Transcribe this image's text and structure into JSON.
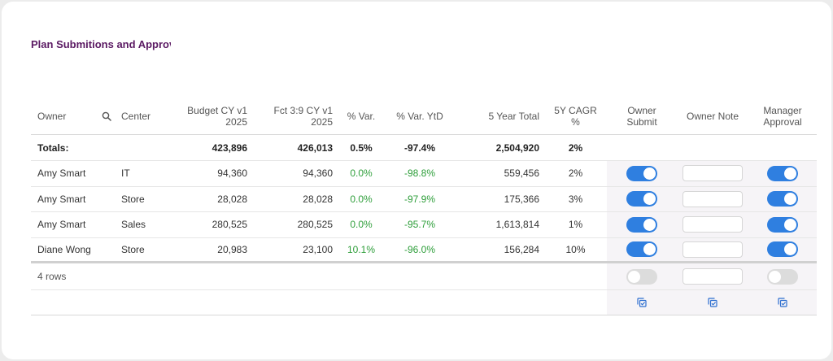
{
  "page_title": "Plan Submitions and Approva",
  "columns": {
    "owner": "Owner",
    "center": "Center",
    "budget_l1": "Budget CY v1",
    "budget_l2": "2025",
    "fct_l1": "Fct 3:9 CY v1",
    "fct_l2": "2025",
    "var": "% Var.",
    "var_ytd": "% Var. YtD",
    "five_year_total": "5 Year Total",
    "cagr": "5Y CAGR %",
    "owner_submit_l1": "Owner",
    "owner_submit_l2": "Submit",
    "owner_note": "Owner Note",
    "manager_approval_l1": "Manager",
    "manager_approval_l2": "Approval"
  },
  "totals": {
    "label": "Totals:",
    "budget": "423,896",
    "fct": "426,013",
    "var": "0.5%",
    "var_ytd": "-97.4%",
    "five_year_total": "2,504,920",
    "cagr": "2%"
  },
  "rows": [
    {
      "owner": "Amy Smart",
      "center": "IT",
      "budget": "94,360",
      "fct": "94,360",
      "var": "0.0%",
      "var_ytd": "-98.8%",
      "five_year_total": "559,456",
      "cagr": "2%",
      "owner_submit": true,
      "manager_approval": true
    },
    {
      "owner": "Amy Smart",
      "center": "Store",
      "budget": "28,028",
      "fct": "28,028",
      "var": "0.0%",
      "var_ytd": "-97.9%",
      "five_year_total": "175,366",
      "cagr": "3%",
      "owner_submit": true,
      "manager_approval": true
    },
    {
      "owner": "Amy Smart",
      "center": "Sales",
      "budget": "280,525",
      "fct": "280,525",
      "var": "0.0%",
      "var_ytd": "-95.7%",
      "five_year_total": "1,613,814",
      "cagr": "1%",
      "owner_submit": true,
      "manager_approval": true
    },
    {
      "owner": "Diane Wong",
      "center": "Store",
      "budget": "20,983",
      "fct": "23,100",
      "var": "10.1%",
      "var_ytd": "-96.0%",
      "five_year_total": "156,284",
      "cagr": "10%",
      "owner_submit": true,
      "manager_approval": true
    }
  ],
  "footer": {
    "row_count": "4 rows",
    "owner_submit": false,
    "manager_approval": false
  },
  "colors": {
    "title": "#5b1a63",
    "toggle_on": "#2f7fe0",
    "toggle_off": "#dcdcdc",
    "positive": "#2e9e3a",
    "icon": "#2f6fd0"
  },
  "icons": {
    "search": "search-icon",
    "bulk_action": "copy-check-icon"
  }
}
